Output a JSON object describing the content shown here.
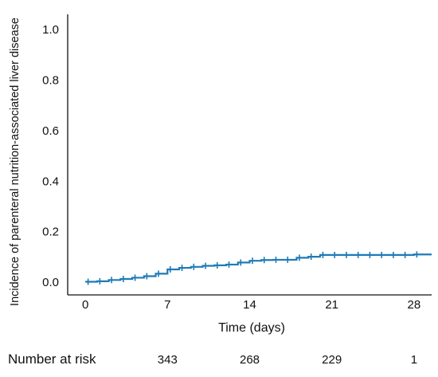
{
  "chart_data": {
    "type": "line",
    "title": "",
    "xlabel": "Time (days)",
    "ylabel": "Incidence of parenteral nutrition-associated liver disease",
    "xlim": [
      -1.5,
      29.5
    ],
    "ylim": [
      -0.05,
      1.06
    ],
    "xticks": [
      0,
      7,
      14,
      21,
      28
    ],
    "xtick_labels": [
      "0",
      "7",
      "14",
      "21",
      "28"
    ],
    "yticks": [
      0.0,
      0.2,
      0.4,
      0.6,
      0.8,
      1.0
    ],
    "ytick_labels": [
      "0.0",
      "0.2",
      "0.4",
      "0.6",
      "0.8",
      "1.0"
    ],
    "grid": false,
    "series": [
      {
        "color": "#1f7bb5",
        "step": true,
        "x": [
          0,
          1,
          2,
          3,
          4,
          5,
          6,
          7,
          8,
          9,
          10,
          11,
          12,
          13,
          14,
          15,
          16,
          17,
          18,
          19,
          20,
          21,
          22,
          23,
          24,
          25,
          26,
          27,
          28,
          29.5
        ],
        "y": [
          0.002,
          0.004,
          0.009,
          0.013,
          0.018,
          0.024,
          0.034,
          0.051,
          0.057,
          0.061,
          0.065,
          0.067,
          0.07,
          0.078,
          0.085,
          0.088,
          0.089,
          0.089,
          0.097,
          0.101,
          0.108,
          0.108,
          0.108,
          0.108,
          0.108,
          0.108,
          0.108,
          0.108,
          0.11,
          0.11
        ],
        "censor_x": [
          0,
          1,
          2,
          3,
          4,
          5,
          6,
          7,
          8,
          9,
          10,
          11,
          12,
          13,
          14,
          15,
          16,
          17,
          18,
          19,
          20,
          21,
          22,
          23,
          24,
          25,
          26,
          27,
          28
        ]
      }
    ],
    "risk_table": {
      "label": "Number at risk",
      "times": [
        7,
        14,
        21,
        28
      ],
      "values": [
        "343",
        "268",
        "229",
        "1"
      ]
    }
  }
}
